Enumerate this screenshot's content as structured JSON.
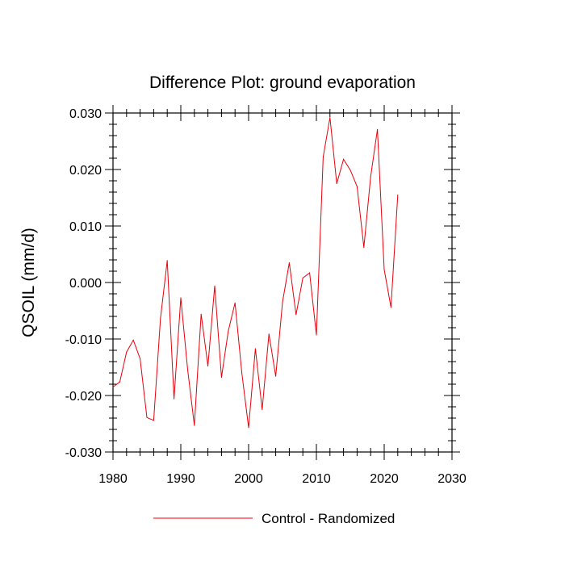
{
  "chart_data": {
    "type": "line",
    "title": "Difference Plot: ground evaporation",
    "xlabel": "",
    "ylabel": "QSOIL  (mm/d)",
    "xlim": [
      1980,
      2030
    ],
    "ylim": [
      -0.03,
      0.03
    ],
    "xticks": [
      1980,
      1990,
      2000,
      2010,
      2020,
      2030
    ],
    "xtick_labels": [
      "1980",
      "1990",
      "2000",
      "2010",
      "2020",
      "2030"
    ],
    "yticks": [
      -0.03,
      -0.02,
      -0.01,
      0.0,
      0.01,
      0.02,
      0.03
    ],
    "ytick_labels": [
      "-0.030",
      "-0.020",
      "-0.010",
      "0.000",
      "0.010",
      "0.020",
      "0.030"
    ],
    "grid": false,
    "legend_position": "bottom",
    "series": [
      {
        "name": "Control - Randomized",
        "color": "#e8000b",
        "x": [
          1980,
          1981,
          1982,
          1983,
          1984,
          1985,
          1986,
          1987,
          1988,
          1989,
          1990,
          1991,
          1992,
          1993,
          1994,
          1995,
          1996,
          1997,
          1998,
          1999,
          2000,
          2001,
          2002,
          2003,
          2004,
          2005,
          2006,
          2007,
          2008,
          2009,
          2010,
          2011,
          2012,
          2013,
          2014,
          2015,
          2016,
          2017,
          2018,
          2019,
          2020,
          2021,
          2022
        ],
        "y": [
          -0.0185,
          -0.0176,
          -0.0123,
          -0.0102,
          -0.0135,
          -0.0239,
          -0.0244,
          -0.0064,
          0.0039,
          -0.0206,
          -0.0027,
          -0.0153,
          -0.0253,
          -0.0056,
          -0.0148,
          -0.0006,
          -0.0168,
          -0.0086,
          -0.0036,
          -0.016,
          -0.0257,
          -0.0117,
          -0.0225,
          -0.0091,
          -0.0166,
          -0.0035,
          0.0035,
          -0.0057,
          0.0008,
          0.0017,
          -0.0093,
          0.0222,
          0.0292,
          0.0175,
          0.0218,
          0.0199,
          0.017,
          0.0062,
          0.0187,
          0.0271,
          0.0023,
          -0.0044,
          0.0155
        ]
      }
    ]
  }
}
